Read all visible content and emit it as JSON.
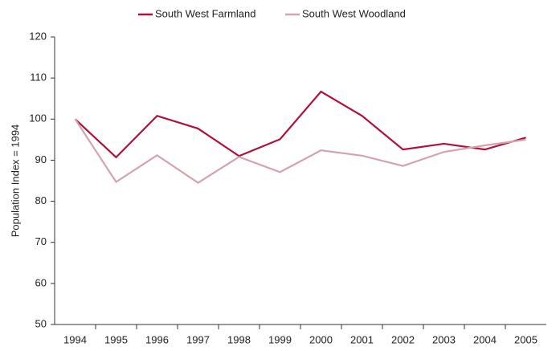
{
  "chart_data": {
    "type": "line",
    "y_label": "Population Index = 1994",
    "categories": [
      "1994",
      "1995",
      "1996",
      "1997",
      "1998",
      "1999",
      "2000",
      "2001",
      "2002",
      "2003",
      "2004",
      "2005"
    ],
    "series": [
      {
        "name": "South West Farmland",
        "color": "#b0103a",
        "values": [
          100,
          90.7,
          100.8,
          97.7,
          91,
          95.1,
          106.7,
          100.8,
          92.6,
          94,
          92.6,
          95.5
        ]
      },
      {
        "name": "South West Woodland",
        "color": "#d4a3ae",
        "values": [
          100,
          84.7,
          91.2,
          84.5,
          90.8,
          87.1,
          92.4,
          91.1,
          88.6,
          92,
          93.6,
          95
        ]
      }
    ],
    "ylim": [
      50,
      120
    ],
    "yticks": [
      50,
      60,
      70,
      80,
      90,
      100,
      110,
      120
    ],
    "grid": false,
    "legend": "top"
  }
}
